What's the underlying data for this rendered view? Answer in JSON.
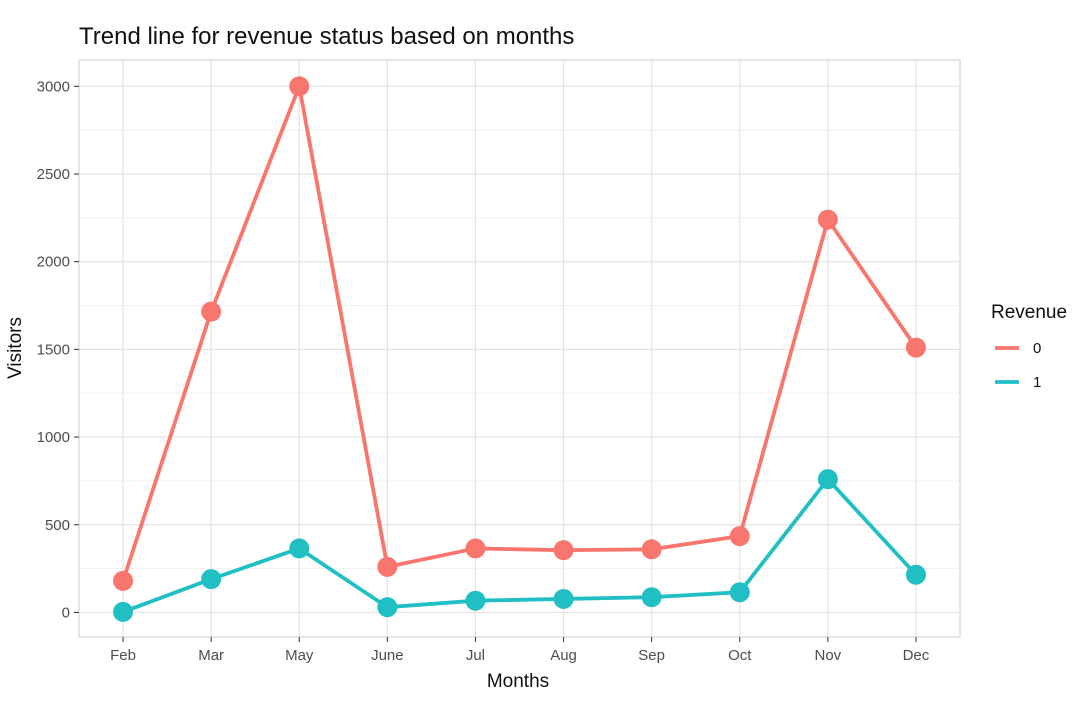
{
  "chart_data": {
    "type": "line",
    "title": "Trend line for revenue status based on months",
    "xlabel": "Months",
    "ylabel": "Visitors",
    "categories": [
      "Feb",
      "Mar",
      "May",
      "June",
      "Jul",
      "Aug",
      "Sep",
      "Oct",
      "Nov",
      "Dec"
    ],
    "ylim": [
      -140,
      3150
    ],
    "yticks": [
      0,
      500,
      1000,
      1500,
      2000,
      2500,
      3000
    ],
    "grid": true,
    "legend": {
      "title": "Revenue",
      "position": "right"
    },
    "series": [
      {
        "name": "0",
        "color": "#f8766d",
        "values": [
          180,
          1715,
          3000,
          260,
          365,
          355,
          360,
          435,
          2240,
          1510
        ]
      },
      {
        "name": "1",
        "color": "#1fbfc4",
        "values": [
          3,
          190,
          365,
          30,
          67,
          77,
          87,
          115,
          760,
          215
        ]
      }
    ]
  }
}
